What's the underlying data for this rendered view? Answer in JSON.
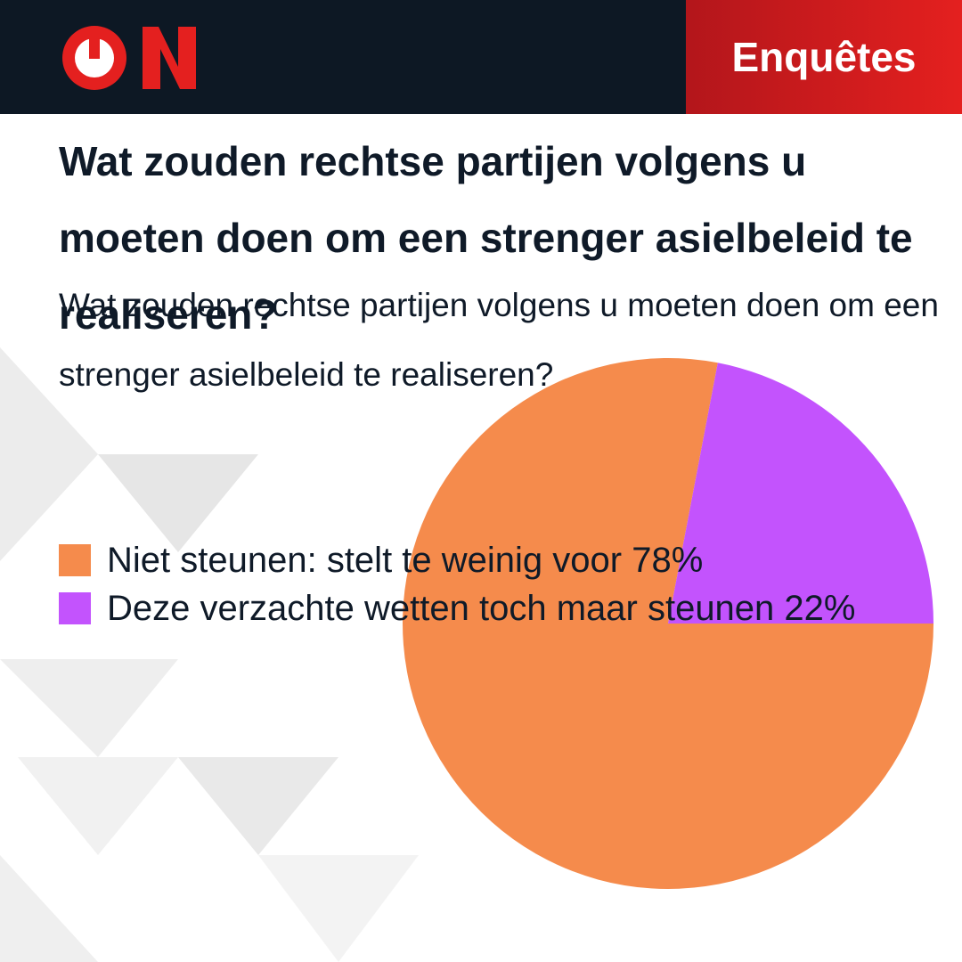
{
  "header": {
    "section": "Enquêtes"
  },
  "chart_data": {
    "type": "pie",
    "title": "Wat zouden rechtse partijen volgens u moeten doen om een strenger asielbeleid te realiseren?",
    "subtitle": "Wat zouden rechtse partijen volgens u moeten doen om een strenger asielbeleid te realiseren?",
    "categories": [
      "Niet steunen: stelt te weinig voor",
      "Deze verzachte wetten toch maar steunen"
    ],
    "values": [
      78,
      22
    ],
    "value_labels": [
      "78%",
      "22%"
    ],
    "colors": [
      "#f58b4c",
      "#c353fd"
    ]
  }
}
